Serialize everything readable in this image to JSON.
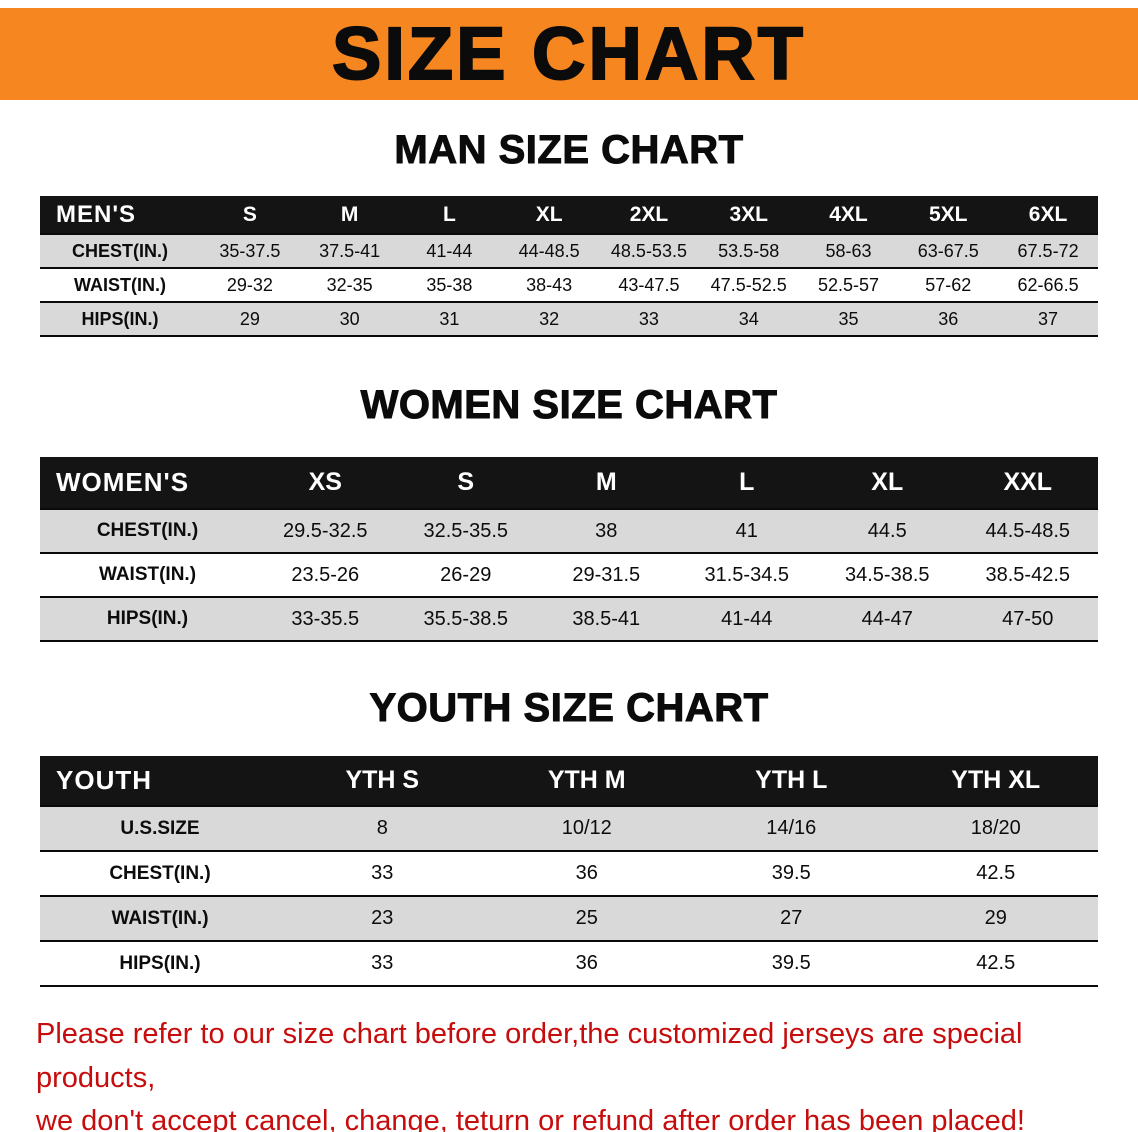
{
  "banner": {
    "title": "SIZE CHART"
  },
  "colors": {
    "banner_bg": "#f6861f",
    "table_header_bg": "#141414",
    "row_alt_bg": "#d9d9d9",
    "footer_text": "#c60c0c",
    "heading_text": "#0b0b0b"
  },
  "sections": {
    "men": {
      "heading": "MAN SIZE CHART",
      "table": {
        "header": [
          "MEN'S",
          "S",
          "M",
          "L",
          "XL",
          "2XL",
          "3XL",
          "4XL",
          "5XL",
          "6XL"
        ],
        "rows": [
          [
            "CHEST(IN.)",
            "35-37.5",
            "37.5-41",
            "41-44",
            "44-48.5",
            "48.5-53.5",
            "53.5-58",
            "58-63",
            "63-67.5",
            "67.5-72"
          ],
          [
            "WAIST(IN.)",
            "29-32",
            "32-35",
            "35-38",
            "38-43",
            "43-47.5",
            "47.5-52.5",
            "52.5-57",
            "57-62",
            "62-66.5"
          ],
          [
            "HIPS(IN.)",
            "29",
            "30",
            "31",
            "32",
            "33",
            "34",
            "35",
            "36",
            "37"
          ]
        ]
      }
    },
    "women": {
      "heading": "WOMEN SIZE CHART",
      "table": {
        "header": [
          "WOMEN'S",
          "XS",
          "S",
          "M",
          "L",
          "XL",
          "XXL"
        ],
        "rows": [
          [
            "CHEST(IN.)",
            "29.5-32.5",
            "32.5-35.5",
            "38",
            "41",
            "44.5",
            "44.5-48.5"
          ],
          [
            "WAIST(IN.)",
            "23.5-26",
            "26-29",
            "29-31.5",
            "31.5-34.5",
            "34.5-38.5",
            "38.5-42.5"
          ],
          [
            "HIPS(IN.)",
            "33-35.5",
            "35.5-38.5",
            "38.5-41",
            "41-44",
            "44-47",
            "47-50"
          ]
        ]
      }
    },
    "youth": {
      "heading": "YOUTH SIZE CHART",
      "table": {
        "header": [
          "YOUTH",
          "YTH S",
          "YTH M",
          "YTH L",
          "YTH XL"
        ],
        "rows": [
          [
            "U.S.SIZE",
            "8",
            "10/12",
            "14/16",
            "18/20"
          ],
          [
            "CHEST(IN.)",
            "33",
            "36",
            "39.5",
            "42.5"
          ],
          [
            "WAIST(IN.)",
            "23",
            "25",
            "27",
            "29"
          ],
          [
            "HIPS(IN.)",
            "33",
            "36",
            "39.5",
            "42.5"
          ]
        ]
      }
    }
  },
  "footer": {
    "line1": "Please refer to our size chart before order,the customized jerseys are special products,",
    "line2": "we don't accept cancel, change, teturn or refund after order has been placed!"
  }
}
